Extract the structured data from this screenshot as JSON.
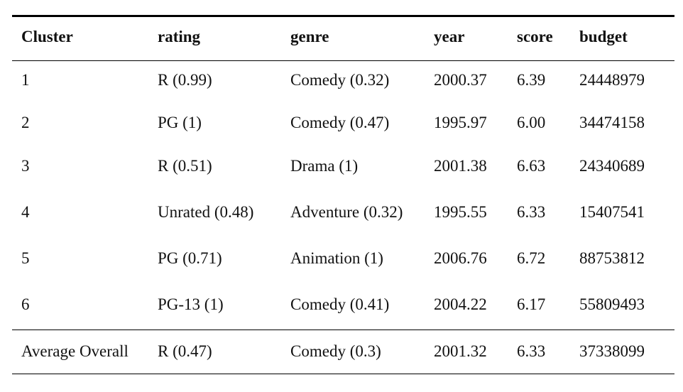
{
  "table": {
    "headers": [
      "Cluster",
      "rating",
      "genre",
      "year",
      "score",
      "budget"
    ],
    "rows": [
      [
        "1",
        "R (0.99)",
        "Comedy (0.32)",
        "2000.37",
        "6.39",
        "24448979"
      ],
      [
        "2",
        "PG (1)",
        "Comedy (0.47)",
        "1995.97",
        "6.00",
        "34474158"
      ],
      [
        "3",
        "R (0.51)",
        "Drama (1)",
        "2001.38",
        "6.63",
        "24340689"
      ],
      [
        "4",
        "Unrated (0.48)",
        "Adventure (0.32)",
        "1995.55",
        "6.33",
        "15407541"
      ],
      [
        "5",
        "PG (0.71)",
        "Animation (1)",
        "2006.76",
        "6.72",
        "88753812"
      ],
      [
        "6",
        "PG-13 (1)",
        "Comedy (0.41)",
        "2004.22",
        "6.17",
        "55809493"
      ]
    ],
    "footer": [
      "Average Overall",
      "R (0.47)",
      "Comedy (0.3)",
      "2001.32",
      "6.33",
      "37338099"
    ]
  }
}
